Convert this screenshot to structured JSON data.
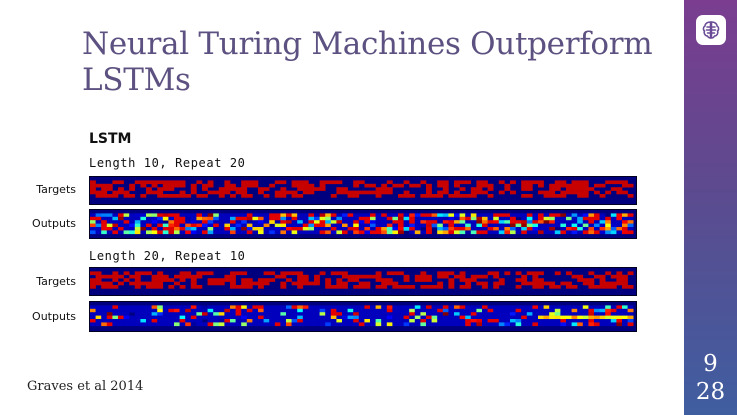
{
  "slide": {
    "title": "Neural Turing Machines Outperform LSTMs",
    "citation": "Graves et al 2014",
    "page_number": "9",
    "page_total": "28",
    "logo_icon": "brain-icon"
  },
  "figure": {
    "heading": "LSTM",
    "panels": [
      {
        "subtitle": "Length 10, Repeat 20",
        "rows": [
          {
            "label": "Targets",
            "kind": "targets",
            "seed": 11
          },
          {
            "label": "Outputs",
            "kind": "outputs_noisy",
            "seed": 23
          }
        ]
      },
      {
        "subtitle": "Length 20, Repeat 10",
        "rows": [
          {
            "label": "Targets",
            "kind": "targets",
            "seed": 37
          },
          {
            "label": "Outputs",
            "kind": "outputs_sparse",
            "seed": 51
          }
        ]
      }
    ],
    "colors": {
      "low": "#00007f",
      "high": "#8b0000"
    }
  }
}
